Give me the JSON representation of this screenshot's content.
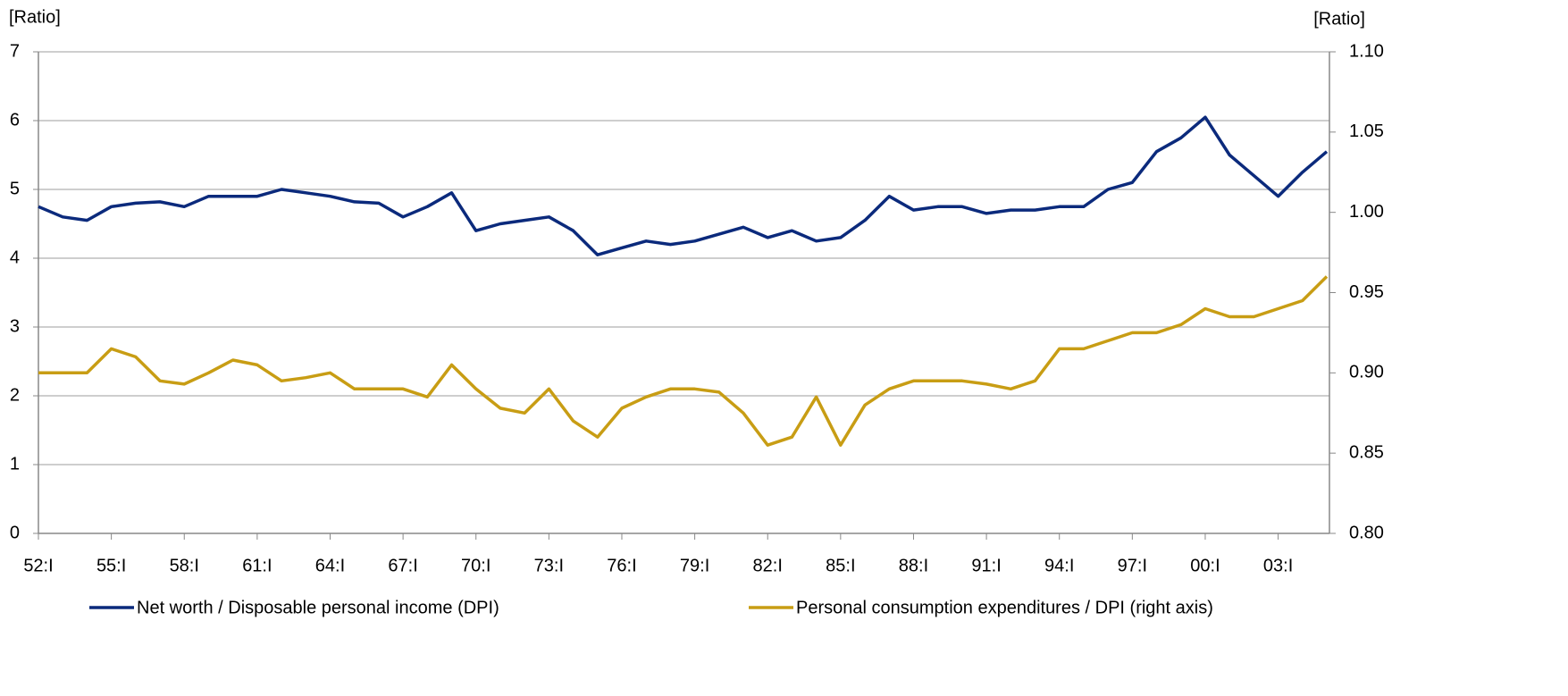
{
  "chart_data": {
    "type": "line",
    "y_axis_label": "[Ratio]",
    "y2_axis_label": "[Ratio]",
    "categories": [
      "52:I",
      null,
      null,
      "55:I",
      null,
      null,
      "58:I",
      null,
      null,
      "61:I",
      null,
      null,
      "64:I",
      null,
      null,
      "67:I",
      null,
      null,
      "70:I",
      null,
      null,
      "73:I",
      null,
      null,
      "76:I",
      null,
      null,
      "79:I",
      null,
      null,
      "82:I",
      null,
      null,
      "85:I",
      null,
      null,
      "88:I",
      null,
      null,
      "91:I",
      null,
      null,
      "94:I",
      null,
      null,
      "97:I",
      null,
      null,
      "00:I",
      null,
      null,
      "03:I",
      null,
      null
    ],
    "series": [
      {
        "name": "Net worth / Disposable personal income (DPI)",
        "color": "#0b2a7c",
        "axis": "y",
        "values": [
          4.75,
          4.6,
          4.55,
          4.75,
          4.8,
          4.82,
          4.75,
          4.9,
          4.9,
          4.9,
          5.0,
          4.95,
          4.9,
          4.82,
          4.8,
          4.6,
          4.75,
          4.95,
          4.4,
          4.5,
          4.55,
          4.6,
          4.4,
          4.05,
          4.15,
          4.25,
          4.2,
          4.25,
          4.35,
          4.45,
          4.3,
          4.4,
          4.25,
          4.3,
          4.55,
          4.9,
          4.7,
          4.75,
          4.75,
          4.65,
          4.7,
          4.7,
          4.75,
          4.75,
          5.0,
          5.1,
          5.55,
          5.75,
          6.05,
          5.5,
          5.2,
          4.9,
          5.25,
          5.55
        ]
      },
      {
        "name": "Personal consumption expenditures / DPI (right axis)",
        "color": "#c89d14",
        "axis": "y2",
        "values": [
          0.9,
          0.9,
          0.9,
          0.915,
          0.91,
          0.895,
          0.893,
          0.9,
          0.908,
          0.905,
          0.895,
          0.897,
          0.9,
          0.89,
          0.89,
          0.89,
          0.885,
          0.905,
          0.89,
          0.878,
          0.875,
          0.89,
          0.87,
          0.86,
          0.878,
          0.885,
          0.89,
          0.89,
          0.888,
          0.875,
          0.855,
          0.86,
          0.885,
          0.855,
          0.88,
          0.89,
          0.895,
          0.895,
          0.895,
          0.893,
          0.89,
          0.895,
          0.915,
          0.915,
          0.92,
          0.925,
          0.925,
          0.93,
          0.94,
          0.935,
          0.935,
          0.94,
          0.945,
          0.96
        ]
      }
    ],
    "ylim": [
      0,
      7
    ],
    "yticks": [
      0,
      1,
      2,
      3,
      4,
      5,
      6,
      7
    ],
    "y2lim": [
      0.8,
      1.1
    ],
    "y2ticks": [
      {
        "value": 0.8,
        "label": "0.80"
      },
      0.85,
      {
        "value": 0.9,
        "label": "0.90"
      },
      0.95,
      {
        "value": 1.0,
        "label": "1.00"
      },
      1.05,
      {
        "value": 1.1,
        "label": "1.10"
      }
    ],
    "grid": true,
    "legend": "bottom"
  }
}
